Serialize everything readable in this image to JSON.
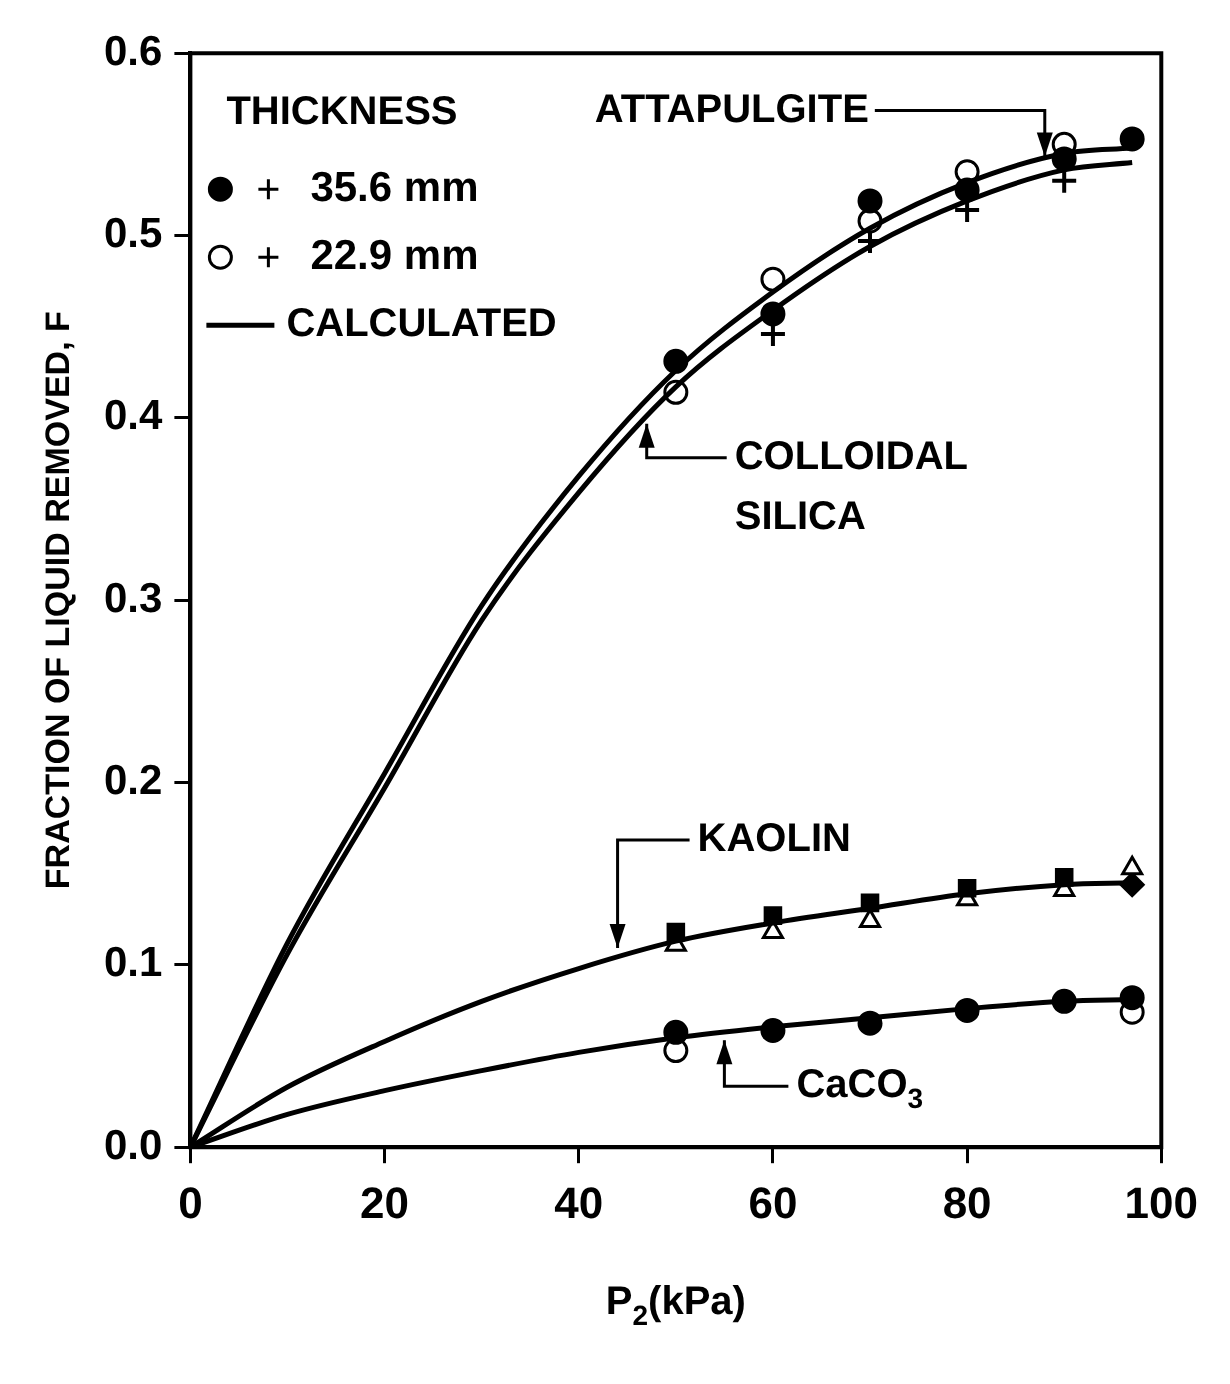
{
  "chart_data": {
    "type": "line",
    "xlabel": "P$_{2}$(kPa)",
    "ylabel": "FRACTION OF LIQUID REMOVED, F",
    "legend_title": "THICKNESS",
    "legend": "top left",
    "xlim": [
      0,
      100
    ],
    "xticks": [
      0,
      20,
      40,
      60,
      80,
      100
    ],
    "ylim": [
      0,
      0.6
    ],
    "yticks": [
      {
        "value": 0,
        "label": "0.0"
      },
      0.1,
      0.2,
      0.3,
      0.4,
      0.5,
      0.6
    ],
    "grid": false,
    "series": [
      {
        "name": "CALCULATED",
        "type": "line",
        "color": "#000000",
        "marker": "none",
        "line_style": "solid",
        "x": [
          0,
          10,
          20,
          30,
          40,
          50,
          60,
          70,
          80,
          90,
          97
        ],
        "values": [
          0,
          0.112,
          0.205,
          0.297,
          0.368,
          0.426,
          0.469,
          0.504,
          0.529,
          0.545,
          0.548
        ]
      },
      {
        "type": "line",
        "color": "#000000",
        "marker": "none",
        "line_style": "solid",
        "x": [
          0,
          10,
          20,
          30,
          40,
          50,
          60,
          70,
          80,
          90,
          97
        ],
        "values": [
          0,
          0.106,
          0.197,
          0.289,
          0.359,
          0.417,
          0.459,
          0.494,
          0.519,
          0.536,
          0.54
        ]
      },
      {
        "type": "line",
        "color": "#000000",
        "marker": "none",
        "line_style": "solid",
        "x": [
          0,
          10,
          20,
          30,
          40,
          50,
          60,
          70,
          80,
          90,
          97
        ],
        "values": [
          0,
          0.033,
          0.058,
          0.08,
          0.098,
          0.113,
          0.123,
          0.131,
          0.139,
          0.144,
          0.145
        ]
      },
      {
        "type": "line",
        "color": "#000000",
        "marker": "none",
        "line_style": "solid",
        "x": [
          0,
          10,
          20,
          30,
          40,
          50,
          60,
          70,
          80,
          90,
          97
        ],
        "values": [
          0,
          0.018,
          0.031,
          0.042,
          0.052,
          0.06,
          0.066,
          0.071,
          0.076,
          0.08,
          0.081
        ]
      },
      {
        "name": "35.6 mm",
        "type": "scatter",
        "color": "#000000",
        "marker": "circle",
        "x": [
          50,
          60,
          70,
          80,
          90,
          97,
          50,
          60,
          70,
          80,
          90,
          97
        ],
        "values": [
          0.431,
          0.457,
          0.519,
          0.525,
          0.542,
          0.553,
          0.063,
          0.064,
          0.068,
          0.075,
          0.08,
          0.082
        ]
      },
      {
        "name": "22.9 mm",
        "type": "scatter",
        "color": "#ffffff",
        "marker": "circle",
        "x": [
          50,
          60,
          70,
          80,
          90,
          50,
          97
        ],
        "values": [
          0.414,
          0.476,
          0.508,
          0.535,
          0.55,
          0.053,
          0.074
        ]
      },
      {
        "type": "scatter",
        "color": "#000000",
        "marker": "cross",
        "x": [
          60,
          70,
          80,
          90
        ],
        "values": [
          0.446,
          0.497,
          0.514,
          0.53
        ]
      },
      {
        "type": "scatter",
        "color": "#000000",
        "marker": "square",
        "x": [
          50,
          60,
          70,
          80,
          90
        ],
        "values": [
          0.118,
          0.127,
          0.134,
          0.142,
          0.148
        ]
      },
      {
        "type": "scatter",
        "color": "#ffffff",
        "marker": "triangle",
        "x": [
          50,
          60,
          70,
          80,
          90,
          97
        ],
        "values": [
          0.111,
          0.118,
          0.124,
          0.136,
          0.141,
          0.153
        ]
      },
      {
        "type": "scatter",
        "color": "#000000",
        "marker": "diamond",
        "x": [
          97
        ],
        "values": [
          0.144
        ]
      }
    ],
    "annotations": [
      {
        "text": "ATTAPULGITE",
        "x": 88,
        "y": 0.54
      },
      {
        "text": "COLLOIDAL SILICA",
        "x": 47,
        "y": 0.4
      },
      {
        "text": "KAOLIN",
        "x": 44,
        "y": 0.106
      },
      {
        "text": "CaCO$_{3}$",
        "x": 55,
        "y": 0.062
      }
    ]
  }
}
